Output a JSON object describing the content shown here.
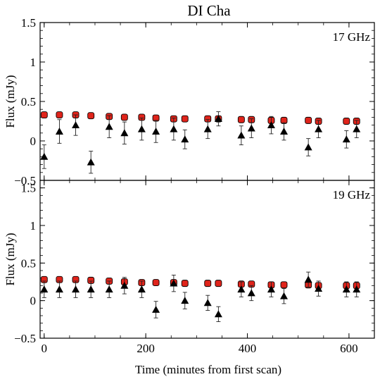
{
  "chart_data": [
    {
      "type": "scatter",
      "title": "DI Cha",
      "annotation": "17 GHz",
      "xlabel": "",
      "ylabel": "Flux (mJy)",
      "xlim": [
        -8,
        650
      ],
      "ylim": [
        -0.5,
        1.5
      ],
      "xticks": [
        0,
        200,
        400,
        600
      ],
      "yticks": [
        "-0.5",
        "0",
        "0.5",
        "1",
        "1.5"
      ],
      "grid": false,
      "series": [
        {
          "marker": "red-circle",
          "color": "#e0241b",
          "x": [
            0,
            30,
            62,
            92,
            128,
            158,
            192,
            220,
            255,
            277,
            322,
            343,
            388,
            408,
            447,
            472,
            520,
            540,
            595,
            615
          ],
          "y": [
            0.33,
            0.33,
            0.33,
            0.32,
            0.31,
            0.3,
            0.3,
            0.29,
            0.28,
            0.28,
            0.28,
            0.28,
            0.27,
            0.27,
            0.26,
            0.26,
            0.26,
            0.25,
            0.25,
            0.25
          ],
          "err": [
            0.02,
            0.02,
            0.02,
            0.02,
            0.02,
            0.02,
            0.02,
            0.02,
            0.02,
            0.02,
            0.02,
            0.02,
            0.02,
            0.02,
            0.02,
            0.02,
            0.02,
            0.02,
            0.02,
            0.02
          ]
        },
        {
          "marker": "black-triangle",
          "color": "#000000",
          "x": [
            0,
            30,
            62,
            92,
            128,
            158,
            192,
            220,
            255,
            277,
            322,
            343,
            388,
            408,
            447,
            472,
            520,
            540,
            595,
            615
          ],
          "y": [
            -0.2,
            0.12,
            0.2,
            -0.27,
            0.18,
            0.1,
            0.15,
            0.12,
            0.15,
            0.02,
            0.15,
            0.28,
            0.07,
            0.16,
            0.2,
            0.12,
            -0.08,
            0.15,
            0.02,
            0.15
          ],
          "err": [
            0.15,
            0.15,
            0.13,
            0.14,
            0.14,
            0.14,
            0.14,
            0.14,
            0.14,
            0.12,
            0.12,
            0.09,
            0.12,
            0.12,
            0.11,
            0.11,
            0.11,
            0.11,
            0.11,
            0.11
          ]
        }
      ]
    },
    {
      "type": "scatter",
      "annotation": "19 GHz",
      "xlabel": "Time (minutes from first scan)",
      "ylabel": "Flux (mJy)",
      "xlim": [
        -8,
        650
      ],
      "ylim": [
        -0.5,
        1.6
      ],
      "xticks": [
        0,
        200,
        400,
        600
      ],
      "yticks": [
        "-0.5",
        "0",
        "0.5",
        "1",
        "1.5"
      ],
      "grid": false,
      "series": [
        {
          "marker": "red-circle",
          "color": "#e0241b",
          "x": [
            0,
            30,
            62,
            92,
            128,
            158,
            192,
            220,
            255,
            277,
            322,
            343,
            388,
            408,
            447,
            472,
            520,
            540,
            595,
            615
          ],
          "y": [
            0.28,
            0.28,
            0.28,
            0.27,
            0.26,
            0.25,
            0.24,
            0.24,
            0.24,
            0.23,
            0.23,
            0.23,
            0.22,
            0.22,
            0.21,
            0.21,
            0.21,
            0.2,
            0.2,
            0.2
          ],
          "err": [
            0.02,
            0.02,
            0.02,
            0.02,
            0.02,
            0.02,
            0.02,
            0.02,
            0.02,
            0.02,
            0.02,
            0.02,
            0.02,
            0.02,
            0.02,
            0.02,
            0.02,
            0.02,
            0.02,
            0.02
          ]
        },
        {
          "marker": "black-triangle",
          "color": "#000000",
          "x": [
            0,
            30,
            62,
            92,
            128,
            158,
            192,
            220,
            255,
            277,
            322,
            343,
            388,
            408,
            447,
            472,
            520,
            540,
            595,
            615
          ],
          "y": [
            0.15,
            0.15,
            0.15,
            0.15,
            0.15,
            0.2,
            0.15,
            -0.12,
            0.23,
            0.0,
            -0.03,
            -0.18,
            0.15,
            0.1,
            0.15,
            0.06,
            0.28,
            0.16,
            0.15,
            0.15
          ],
          "err": [
            0.11,
            0.11,
            0.11,
            0.11,
            0.11,
            0.11,
            0.11,
            0.11,
            0.11,
            0.11,
            0.1,
            0.1,
            0.1,
            0.1,
            0.1,
            0.1,
            0.1,
            0.1,
            0.1,
            0.1
          ]
        }
      ]
    }
  ]
}
